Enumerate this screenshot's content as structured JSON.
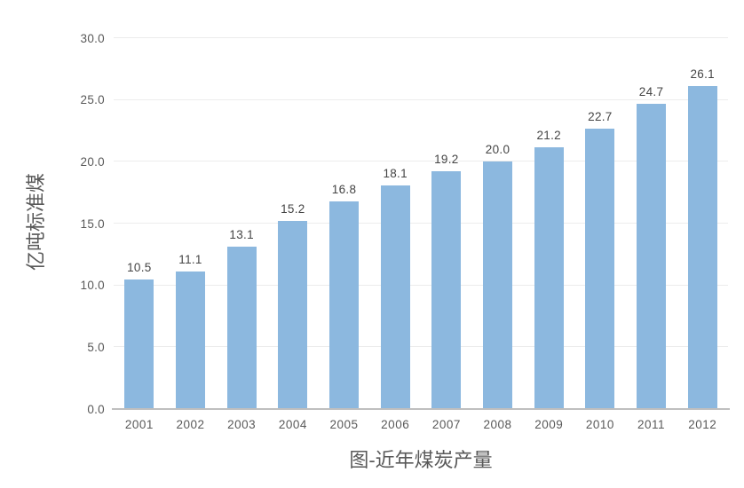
{
  "chart_data": {
    "type": "bar",
    "categories": [
      "2001",
      "2002",
      "2003",
      "2004",
      "2005",
      "2006",
      "2007",
      "2008",
      "2009",
      "2010",
      "2011",
      "2012"
    ],
    "values": [
      10.5,
      11.1,
      13.1,
      15.2,
      16.8,
      18.1,
      19.2,
      20.0,
      21.2,
      22.7,
      24.7,
      26.1
    ],
    "value_labels": [
      "10.5",
      "11.1",
      "13.1",
      "15.2",
      "16.8",
      "18.1",
      "19.2",
      "20.0",
      "21.2",
      "22.7",
      "24.7",
      "26.1"
    ],
    "title": "图-近年煤炭产量",
    "xlabel": "",
    "ylabel": "亿吨标准煤",
    "ylim": [
      0,
      30
    ],
    "yticks": [
      "0.0",
      "5.0",
      "10.0",
      "15.0",
      "20.0",
      "25.0",
      "30.0"
    ],
    "grid": true,
    "legend": "none"
  },
  "colors": {
    "bar": "#8CB8DF",
    "gridline": "#ECECEC",
    "axis_line": "#BFBFBF",
    "tick_text": "#595959",
    "value_label_text": "#444444",
    "title_text": "#595959"
  }
}
